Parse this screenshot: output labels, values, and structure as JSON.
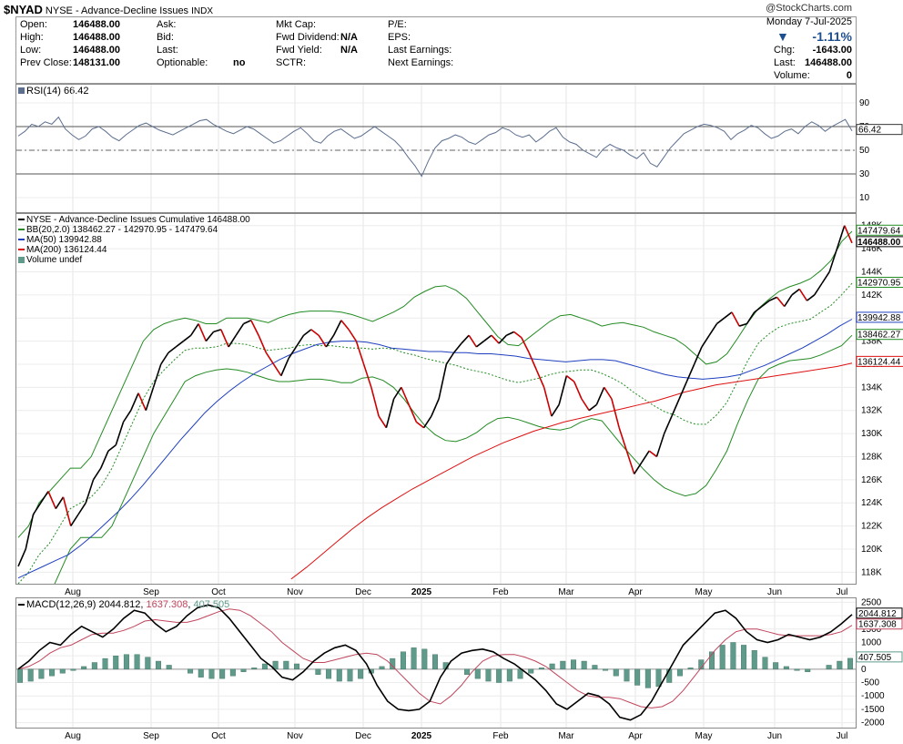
{
  "header": {
    "symbol": "$NYAD",
    "title_rest": " NYSE - Advance-Decline Issues ",
    "exchange": "INDX",
    "watermark": "@StockCharts.com"
  },
  "quote": {
    "open_label": "Open:",
    "open": "146488.00",
    "high_label": "High:",
    "high": "146488.00",
    "low_label": "Low:",
    "low": "146488.00",
    "prev_close_label": "Prev Close:",
    "prev_close": "148131.00",
    "ask_label": "Ask:",
    "bid_label": "Bid:",
    "last_label": "Last:",
    "optionable_label": "Optionable:",
    "optionable": "no",
    "mktcap_label": "Mkt Cap:",
    "fwd_div_label": "Fwd Dividend:",
    "fwd_div": "N/A",
    "fwd_yield_label": "Fwd Yield:",
    "fwd_yield": "N/A",
    "sctr_label": "SCTR:",
    "pe_label": "P/E:",
    "eps_label": "EPS:",
    "last_earn_label": "Last Earnings:",
    "next_earn_label": "Next Earnings:",
    "date": "Monday  7-Jul-2025",
    "arrow": "▼",
    "change_pct": "-1.11%",
    "chg_label": "Chg:",
    "chg": "-1643.00",
    "last2_label": "Last:",
    "last2": "146488.00",
    "volume_label": "Volume:",
    "volume": "0"
  },
  "colors": {
    "price": "#000000",
    "price_down": "#cc0000",
    "bb": "#228b22",
    "ma50": "#1f3fbf",
    "ma200": "#dd1111",
    "rsi": "#5c6f8f",
    "macd": "#000000",
    "signal": "#c0455c",
    "hist": "#5f9a8a"
  },
  "chart_data": [
    {
      "type": "line",
      "panel": "RSI",
      "legend": "RSI(14) 66.42",
      "last_value_label": "66.42",
      "y_ticks": [
        10,
        30,
        50,
        70,
        90
      ],
      "ylim": [
        0,
        100
      ],
      "lines": [
        70,
        50,
        30
      ],
      "series": [
        {
          "name": "RSI(14)",
          "values": [
            62,
            66,
            72,
            70,
            74,
            72,
            78,
            68,
            63,
            59,
            62,
            68,
            70,
            66,
            61,
            58,
            63,
            67,
            71,
            73,
            70,
            67,
            65,
            63,
            66,
            69,
            72,
            75,
            76,
            72,
            69,
            66,
            64,
            67,
            70,
            68,
            64,
            60,
            56,
            58,
            62,
            66,
            69,
            64,
            58,
            56,
            62,
            66,
            68,
            64,
            60,
            62,
            66,
            70,
            66,
            62,
            58,
            52,
            44,
            37,
            28,
            41,
            52,
            58,
            60,
            63,
            61,
            57,
            55,
            59,
            63,
            65,
            69,
            67,
            63,
            61,
            63,
            57,
            61,
            66,
            69,
            61,
            57,
            55,
            50,
            47,
            44,
            51,
            55,
            52,
            50,
            46,
            43,
            48,
            39,
            36,
            44,
            52,
            58,
            64,
            67,
            70,
            72,
            71,
            69,
            66,
            59,
            64,
            67,
            71,
            69,
            64,
            60,
            62,
            66,
            68,
            64,
            70,
            74,
            71,
            66,
            70,
            73,
            76,
            66.42
          ]
        }
      ]
    },
    {
      "type": "line",
      "panel": "Price",
      "title": "NYSE - Advance-Decline Issues Cumulative 146488.00",
      "legend": [
        "NYSE - Advance-Decline Issues Cumulative 146488.00",
        "BB(20,2.0) 138462.27 - 142970.95 - 147479.64",
        "MA(50) 139942.88",
        "MA(200) 136124.44",
        "Volume undef"
      ],
      "y_ticks": [
        "118K",
        "120K",
        "122K",
        "124K",
        "126K",
        "128K",
        "130K",
        "132K",
        "134K",
        "136K",
        "138K",
        "140K",
        "142K",
        "144K",
        "146K",
        "148K"
      ],
      "ylim": [
        117000,
        149000
      ],
      "x_ticks": [
        "Aug",
        "Sep",
        "Oct",
        "Nov",
        "Dec",
        "2025",
        "Feb",
        "Mar",
        "Apr",
        "May",
        "Jun",
        "Jul"
      ],
      "price_tags": [
        {
          "label": "147479.64",
          "value": 147480,
          "color": "#228b22"
        },
        {
          "label": "146488.00",
          "value": 146488,
          "color": "#000000"
        },
        {
          "label": "142970.95",
          "value": 142971,
          "color": "#228b22"
        },
        {
          "label": "139942.88",
          "value": 139943,
          "color": "#1f3fbf"
        },
        {
          "label": "138462.27",
          "value": 138462,
          "color": "#228b22"
        },
        {
          "label": "136124.44",
          "value": 136124,
          "color": "#dd1111"
        }
      ],
      "series": [
        {
          "name": "NYSE - Advance-Decline Issues Cumulative",
          "values": [
            118.5,
            120,
            123,
            124,
            125,
            123.5,
            124.5,
            122,
            123,
            124,
            126,
            127,
            128.5,
            129,
            131,
            132,
            133.5,
            132,
            134,
            136,
            137,
            137.5,
            138,
            138.5,
            139.5,
            138,
            138.8,
            139,
            137.5,
            138.5,
            139.5,
            139.8,
            138.5,
            137,
            136,
            135,
            136.5,
            137.5,
            138.5,
            139,
            138.5,
            137.5,
            138.5,
            139.8,
            139,
            138,
            136,
            134,
            131.5,
            130.5,
            133,
            134,
            132.5,
            131,
            130.5,
            131.5,
            133,
            136,
            137,
            137.8,
            138.5,
            137.5,
            138,
            138.5,
            137.8,
            138.5,
            138.8,
            138.3,
            137,
            135.5,
            134,
            131.5,
            132.5,
            135,
            134.5,
            133,
            132,
            132.5,
            134,
            133,
            130.5,
            128.5,
            126.5,
            127.5,
            128.5,
            128,
            130,
            131.5,
            133,
            134.5,
            136,
            137.5,
            138.5,
            139.5,
            140,
            140.5,
            139.3,
            139.5,
            140.5,
            141,
            141.5,
            141.8,
            141,
            142,
            142.5,
            141.5,
            142,
            143,
            144,
            146,
            148,
            146.488
          ]
        },
        {
          "name": "BB upper",
          "values": [
            121,
            122,
            124,
            125,
            126,
            127,
            127,
            128,
            130,
            132,
            134,
            136,
            138,
            139,
            139.5,
            139.8,
            140,
            139.8,
            139.5,
            139.5,
            140,
            140,
            140,
            139.8,
            139.6,
            140,
            140.3,
            140.5,
            140.6,
            140.6,
            140.6,
            140.5,
            140.3,
            140,
            139.7,
            140.1,
            140.5,
            141,
            141.8,
            142.3,
            142.7,
            142.8,
            142.4,
            141.7,
            140.6,
            139.5,
            138.4,
            137.7,
            137.6,
            138.3,
            139,
            139.7,
            140.2,
            140.3,
            140,
            139.7,
            139.3,
            139.5,
            139.6,
            139.4,
            139.2,
            138.8,
            138.5,
            138.2,
            137.6,
            136.8,
            136,
            136.2,
            136.9,
            138.2,
            139.6,
            140.8,
            141.6,
            142.3,
            142.7,
            143,
            143.4,
            144.1,
            145,
            146.6,
            147.5
          ]
        },
        {
          "name": "BB lower",
          "values": [
            113,
            114,
            115,
            116,
            118,
            120,
            121,
            121,
            121,
            122,
            124,
            126,
            128,
            130,
            131.5,
            133,
            134.5,
            135,
            135.3,
            135.5,
            135.6,
            135.5,
            135.3,
            135,
            134.7,
            134.5,
            134.5,
            134.6,
            134.7,
            134.7,
            134.6,
            134.4,
            134.4,
            134.8,
            134.9,
            134.6,
            134,
            133,
            131.8,
            130.7,
            129.9,
            129.4,
            129.3,
            129.6,
            130.1,
            130.8,
            131.3,
            131.4,
            131.2,
            130.9,
            130.6,
            130.4,
            130.3,
            130.5,
            131,
            131.3,
            131.1,
            130,
            128.9,
            127.9,
            126.9,
            126,
            125.3,
            124.9,
            124.6,
            124.8,
            125.5,
            126.9,
            128.5,
            130.8,
            132.9,
            134.7,
            135.6,
            136,
            136.3,
            136.4,
            136.5,
            136.8,
            137.2,
            137.6,
            138.5
          ]
        },
        {
          "name": "BB mid",
          "values": [
            117,
            118,
            119.5,
            120.5,
            122,
            123.5,
            124,
            124.5,
            125.5,
            127,
            129,
            131,
            133,
            134.5,
            135.5,
            136.4,
            137.2,
            137.4,
            137.4,
            137.5,
            137.8,
            137.8,
            137.7,
            137.4,
            137.2,
            137.3,
            137.4,
            137.6,
            137.7,
            137.6,
            137.6,
            137.5,
            137.4,
            137.4,
            137.3,
            137.4,
            137.3,
            137,
            136.8,
            136.5,
            136.3,
            136.1,
            135.9,
            135.6,
            135.4,
            135.2,
            134.9,
            134.6,
            134.4,
            134.6,
            134.8,
            135.1,
            135.3,
            135.4,
            135.5,
            135.5,
            135.2,
            134.8,
            134.3,
            133.6,
            133,
            132.4,
            131.9,
            131.6,
            131.1,
            130.8,
            130.8,
            131.6,
            132.7,
            134.5,
            136.3,
            137.8,
            138.6,
            139.2,
            139.5,
            139.7,
            139.9,
            140.5,
            141.1,
            142,
            143
          ]
        },
        {
          "name": "MA(50)",
          "values": [
            117.5,
            118,
            118.5,
            119,
            119.5,
            120.3,
            121.2,
            122.2,
            123.2,
            124.3,
            125.5,
            126.8,
            128.1,
            129.4,
            130.6,
            131.8,
            132.8,
            133.7,
            134.5,
            135.2,
            135.8,
            136.4,
            136.9,
            137.3,
            137.7,
            137.9,
            138,
            138,
            137.9,
            137.7,
            137.4,
            137.3,
            137.2,
            137.1,
            137.1,
            137,
            137,
            136.9,
            136.9,
            136.8,
            136.7,
            136.5,
            136.4,
            136.3,
            136.2,
            136.3,
            136.4,
            136.4,
            136.3,
            136,
            135.7,
            135.4,
            135.1,
            134.9,
            134.8,
            134.7,
            134.8,
            134.9,
            135.1,
            135.5,
            135.9,
            136.4,
            136.9,
            137.4,
            138,
            138.6,
            139.3,
            139.9
          ]
        },
        {
          "name": "MA(200)",
          "values": [
            null,
            null,
            null,
            null,
            null,
            null,
            null,
            null,
            null,
            null,
            null,
            null,
            null,
            null,
            null,
            null,
            null,
            null,
            117.4,
            118.4,
            119.5,
            120.6,
            121.7,
            122.7,
            123.6,
            124.4,
            125.2,
            125.9,
            126.6,
            127.3,
            128,
            128.6,
            129.2,
            129.7,
            130.2,
            130.6,
            131,
            131.3,
            131.6,
            131.9,
            132.2,
            132.5,
            132.8,
            133.2,
            133.6,
            133.9,
            134.2,
            134.4,
            134.6,
            134.8,
            135,
            135.2,
            135.4,
            135.6,
            135.8,
            136.1
          ]
        }
      ]
    },
    {
      "type": "line",
      "panel": "MACD",
      "legend_prefix": "MACD(12,26,9) ",
      "legend_macd": "2044.812",
      "legend_sep": ", ",
      "legend_signal": "1637.308",
      "legend_hist": "407.505",
      "y_ticks": [
        -2000,
        -1500,
        -1000,
        -500,
        0,
        500,
        1000,
        1500,
        2000,
        2500
      ],
      "ylim": [
        -2150,
        2650
      ],
      "value_tags": [
        {
          "label": "2044.812",
          "value": 2044.812,
          "color": "#000000"
        },
        {
          "label": "1637.308",
          "value": 1637.308,
          "color": "#c0455c"
        },
        {
          "label": "407.505",
          "value": 407.505,
          "color": "#5f9a8a"
        }
      ],
      "series": [
        {
          "name": "MACD",
          "values": [
            0,
            300,
            700,
            1000,
            900,
            1300,
            1600,
            1400,
            1200,
            1500,
            1900,
            2200,
            2100,
            1700,
            1400,
            1600,
            2000,
            2300,
            2400,
            2300,
            1900,
            1400,
            900,
            400,
            100,
            -300,
            -400,
            -100,
            300,
            600,
            800,
            900,
            700,
            200,
            -600,
            -1200,
            -1500,
            -1550,
            -1500,
            -1200,
            -300,
            300,
            600,
            700,
            750,
            650,
            400,
            200,
            -100,
            -400,
            -800,
            -1300,
            -1500,
            -1200,
            -900,
            -1000,
            -1300,
            -1800,
            -1900,
            -1700,
            -1200,
            -500,
            200,
            900,
            1300,
            1700,
            2100,
            2200,
            1900,
            1400,
            1100,
            1000,
            1100,
            1300,
            1200,
            1100,
            1200,
            1400,
            1700,
            2044.812
          ]
        },
        {
          "name": "Signal",
          "values": [
            0,
            100,
            300,
            600,
            800,
            900,
            1100,
            1300,
            1350,
            1350,
            1450,
            1600,
            1800,
            1850,
            1800,
            1750,
            1750,
            1850,
            2000,
            2150,
            2250,
            2200,
            2000,
            1700,
            1400,
            1000,
            700,
            400,
            250,
            250,
            350,
            450,
            550,
            600,
            550,
            300,
            -100,
            -500,
            -900,
            -1200,
            -1300,
            -1000,
            -600,
            -100,
            300,
            500,
            550,
            550,
            450,
            300,
            100,
            -200,
            -500,
            -800,
            -1000,
            -1050,
            -1050,
            -1100,
            -1250,
            -1400,
            -1450,
            -1400,
            -1200,
            -800,
            -300,
            200,
            700,
            1100,
            1400,
            1500,
            1500,
            1400,
            1300,
            1250,
            1250,
            1250,
            1250,
            1300,
            1400,
            1637.308
          ]
        }
      ],
      "histogram": [
        -500,
        -450,
        -350,
        -250,
        -150,
        -50,
        100,
        250,
        400,
        500,
        550,
        550,
        450,
        300,
        150,
        0,
        -150,
        -300,
        -350,
        -350,
        -250,
        -100,
        50,
        200,
        300,
        300,
        200,
        0,
        -200,
        -350,
        -450,
        -450,
        -350,
        -150,
        100,
        400,
        650,
        800,
        750,
        550,
        250,
        0,
        -200,
        -350,
        -450,
        -500,
        -450,
        -350,
        -150,
        50,
        200,
        300,
        350,
        300,
        150,
        -50,
        -250,
        -450,
        -600,
        -700,
        -650,
        -500,
        -250,
        50,
        350,
        650,
        900,
        1000,
        900,
        700,
        450,
        250,
        100,
        -50,
        -100,
        0,
        150,
        300,
        407.505
      ]
    }
  ]
}
